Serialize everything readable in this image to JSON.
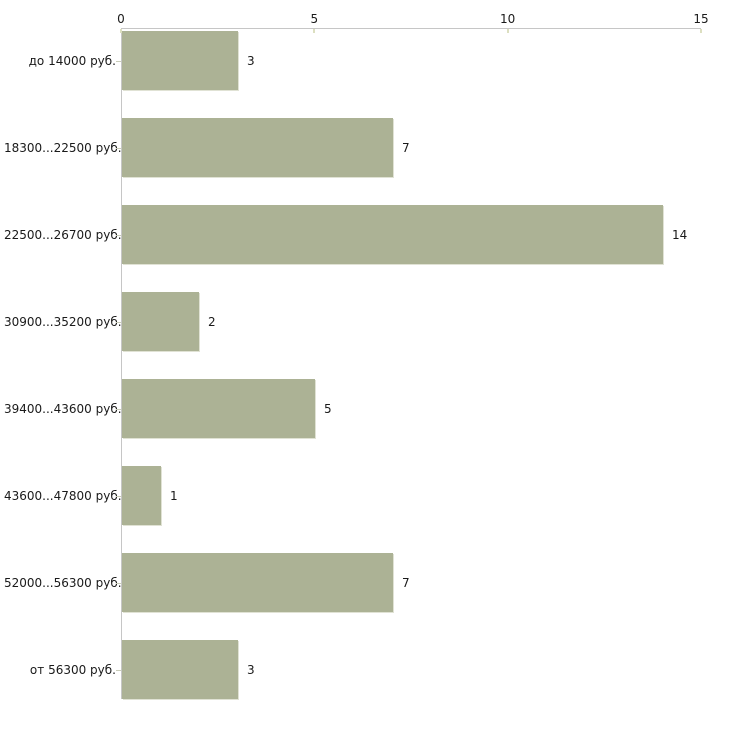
{
  "chart_data": {
    "type": "bar",
    "orientation": "horizontal",
    "title": "",
    "xlabel": "",
    "ylabel": "",
    "grid": "off",
    "legend": "none",
    "axis_position": "top",
    "categories": [
      "до 14000 руб.",
      "18300...22500 руб.",
      "22500...26700 руб.",
      "30900...35200 руб.",
      "39400...43600 руб.",
      "43600...47800 руб.",
      "52000...56300 руб.",
      "от 56300 руб."
    ],
    "values": [
      3,
      7,
      14,
      2,
      5,
      1,
      7,
      3
    ],
    "x_ticks": [
      0,
      5,
      10,
      15
    ],
    "xlim": [
      0,
      15
    ],
    "colors": {
      "bar": "#acb295",
      "bar_edge_highlight": "#e0e2d4",
      "axis_line": "#c6c6c6",
      "tick_mark": "#dcdfc0",
      "category_tick": "#c9ccb9",
      "text": "#1a1a1a",
      "background": "#ffffff"
    }
  }
}
